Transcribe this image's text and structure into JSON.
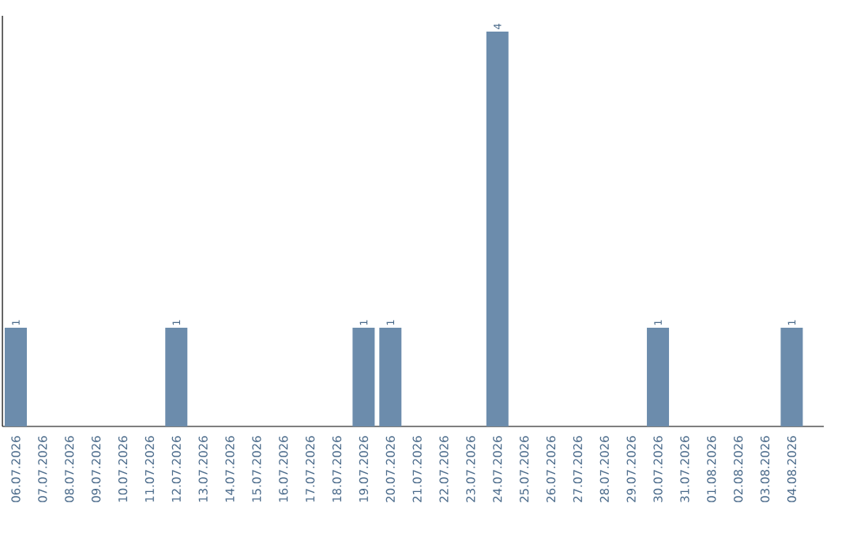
{
  "chart_data": {
    "type": "bar",
    "color": "#6c8cac",
    "categories": [
      "06.07.2026",
      "07.07.2026",
      "08.07.2026",
      "09.07.2026",
      "10.07.2026",
      "11.07.2026",
      "12.07.2026",
      "13.07.2026",
      "14.07.2026",
      "15.07.2026",
      "16.07.2026",
      "17.07.2026",
      "18.07.2026",
      "19.07.2026",
      "20.07.2026",
      "21.07.2026",
      "22.07.2026",
      "23.07.2026",
      "24.07.2026",
      "25.07.2026",
      "26.07.2026",
      "27.07.2026",
      "28.07.2026",
      "29.07.2026",
      "30.07.2026",
      "31.07.2026",
      "01.08.2026",
      "02.08.2026",
      "03.08.2026",
      "04.08.2026"
    ],
    "values": [
      1,
      0,
      0,
      0,
      0,
      0,
      1,
      0,
      0,
      0,
      0,
      0,
      0,
      1,
      1,
      0,
      0,
      0,
      4,
      0,
      0,
      0,
      0,
      0,
      1,
      0,
      0,
      0,
      0,
      1
    ],
    "value_labels": [
      "1",
      null,
      null,
      null,
      null,
      null,
      "1",
      null,
      null,
      null,
      null,
      null,
      null,
      "1",
      "1",
      null,
      null,
      null,
      "4",
      null,
      null,
      null,
      null,
      null,
      "1",
      null,
      null,
      null,
      null,
      "1"
    ]
  }
}
